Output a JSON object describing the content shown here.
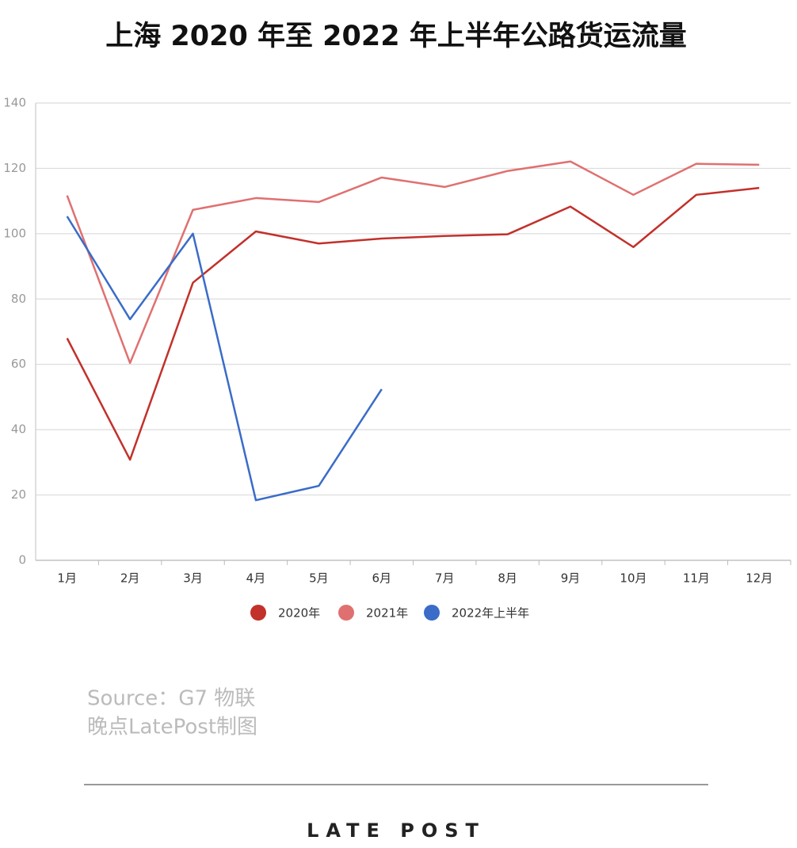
{
  "chart_data": {
    "type": "line",
    "title": "上海 2020 年至 2022 年上半年公路货运流量",
    "categories": [
      "1月",
      "2月",
      "3月",
      "4月",
      "5月",
      "6月",
      "7月",
      "8月",
      "9月",
      "10月",
      "11月",
      "12月"
    ],
    "series": [
      {
        "name": "2020年",
        "color": "#c2312b",
        "values": [
          68,
          30.8,
          85,
          100.7,
          97,
          98.5,
          99.3,
          99.8,
          108.3,
          95.9,
          111.9,
          114
        ]
      },
      {
        "name": "2021年",
        "color": "#e07070",
        "values": [
          111.7,
          60.4,
          107.3,
          110.9,
          109.7,
          117.2,
          114.3,
          119.2,
          122.1,
          111.9,
          121.4,
          121.1
        ]
      },
      {
        "name": "2022年上半年",
        "color": "#3a6cc8",
        "values": [
          105.3,
          73.8,
          100,
          18.4,
          22.8,
          52.4,
          null,
          null,
          null,
          null,
          null,
          null
        ]
      }
    ],
    "ylim": [
      0,
      140
    ],
    "yticks": [
      0,
      20,
      40,
      60,
      80,
      100,
      120,
      140
    ],
    "grid": true,
    "source": [
      "Source：G7 物联",
      "晚点LatePost制图"
    ],
    "logo": "LATE POST"
  }
}
